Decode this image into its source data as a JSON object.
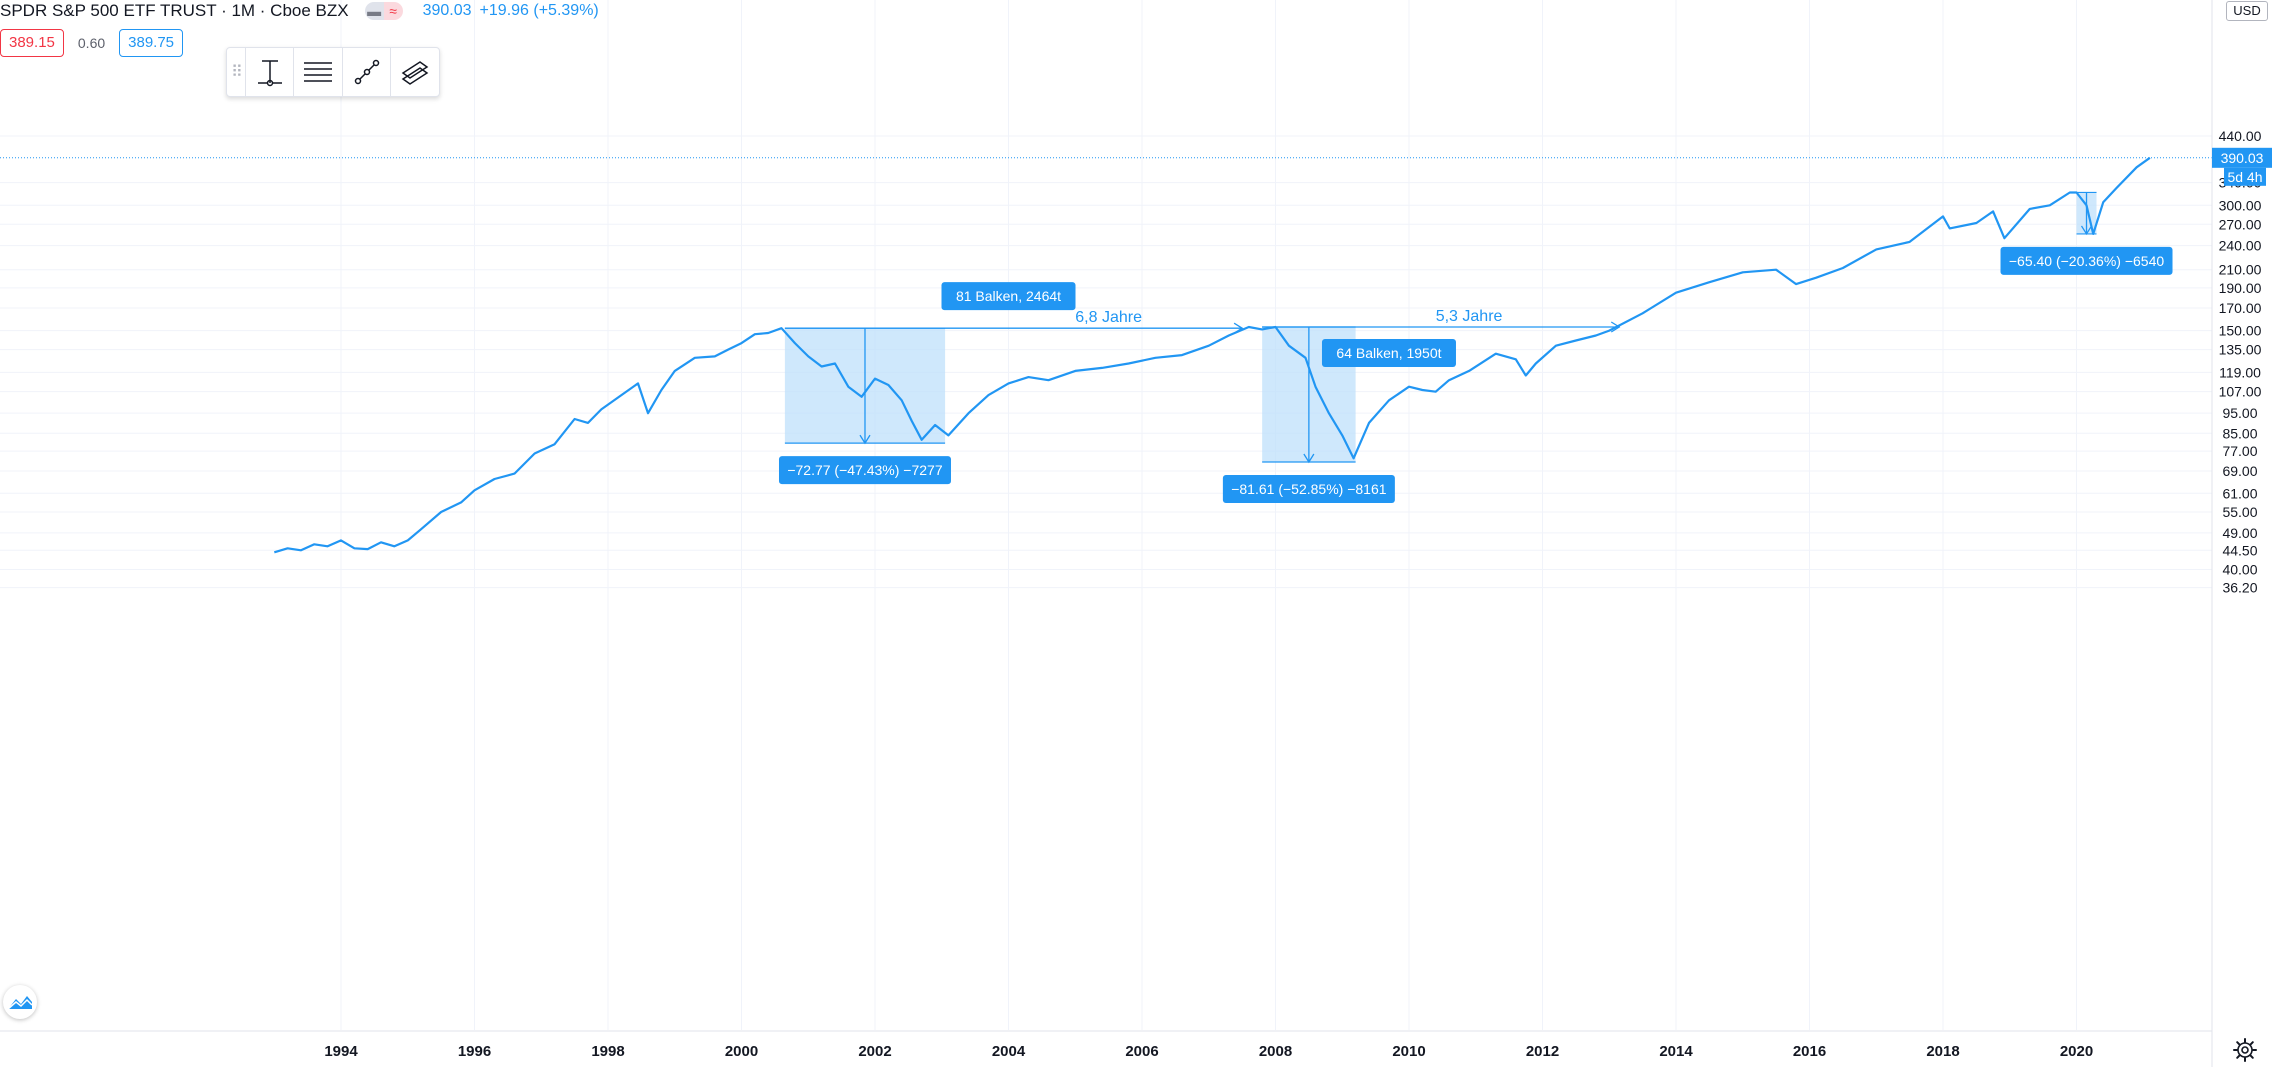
{
  "header": {
    "title": "SPDR S&P 500 ETF TRUST · 1M · Cboe BZX",
    "pill_left_icon": "minus-icon",
    "pill_right_icon": "approx-icon",
    "price": "390.03",
    "change": "+19.96 (+5.39%)"
  },
  "quote": {
    "sell": "389.15",
    "spread": "0.60",
    "buy": "389.75"
  },
  "toolbar": {
    "icons": [
      "drag-handle-icon",
      "price-range-icon",
      "fib-levels-icon",
      "trend-line-icon",
      "parallel-channel-icon"
    ]
  },
  "currency": "USD",
  "price_axis": {
    "last_price_label": "390.03",
    "countdown_label": "5d 4h"
  },
  "colors": {
    "line": "#2196f3",
    "range_fill": "#bbdefb",
    "label_bg": "#2196f3",
    "grid": "#f0f3fa",
    "text": "#131722"
  },
  "chart_data": {
    "type": "line",
    "scale": "log",
    "grid": true,
    "x_ticks": [
      "1994",
      "1996",
      "1998",
      "2000",
      "2002",
      "2004",
      "2006",
      "2008",
      "2010",
      "2012",
      "2014",
      "2016",
      "2018",
      "2020"
    ],
    "y_ticks": [
      "36.20",
      "40.00",
      "44.50",
      "49.00",
      "55.00",
      "61.00",
      "69.00",
      "77.00",
      "85.00",
      "95.00",
      "107.00",
      "119.00",
      "135.00",
      "150.00",
      "170.00",
      "190.00",
      "210.00",
      "240.00",
      "270.00",
      "300.00",
      "340.00",
      "390.03",
      "440.00"
    ],
    "series": [
      {
        "x": [
          1993.0,
          1993.2,
          1993.4,
          1993.6,
          1993.8,
          1994.0,
          1994.2,
          1994.4,
          1994.6,
          1994.8,
          1995.0,
          1995.2,
          1995.5,
          1995.8,
          1996.0,
          1996.3,
          1996.6,
          1996.9,
          1997.2,
          1997.5,
          1997.7,
          1997.9,
          1998.2,
          1998.45,
          1998.6,
          1998.8,
          1999.0,
          1999.3,
          1999.6,
          1999.8,
          2000.0,
          2000.2,
          2000.4,
          2000.6,
          2000.8,
          2001.0,
          2001.2,
          2001.4,
          2001.6,
          2001.8,
          2002.0,
          2002.2,
          2002.4,
          2002.55,
          2002.7,
          2002.9,
          2003.1,
          2003.4,
          2003.7,
          2004.0,
          2004.3,
          2004.6,
          2005.0,
          2005.4,
          2005.8,
          2006.2,
          2006.6,
          2007.0,
          2007.3,
          2007.6,
          2007.8,
          2008.0,
          2008.2,
          2008.45,
          2008.6,
          2008.8,
          2009.0,
          2009.17,
          2009.4,
          2009.7,
          2010.0,
          2010.2,
          2010.4,
          2010.6,
          2010.9,
          2011.3,
          2011.6,
          2011.75,
          2011.9,
          2012.2,
          2012.5,
          2012.8,
          2013.0,
          2013.5,
          2014.0,
          2014.5,
          2015.0,
          2015.5,
          2015.8,
          2016.1,
          2016.5,
          2017.0,
          2017.5,
          2018.0,
          2018.1,
          2018.5,
          2018.75,
          2018.92,
          2019.3,
          2019.6,
          2019.9,
          2020.0,
          2020.15,
          2020.25,
          2020.4,
          2020.6,
          2020.9,
          2021.1
        ],
        "y": [
          44,
          45,
          44.5,
          46,
          45.5,
          47,
          45,
          44.8,
          46.5,
          45.5,
          47,
          50,
          55,
          58,
          62,
          66,
          68,
          76,
          80,
          92,
          90,
          97,
          105,
          112,
          95,
          108,
          120,
          129,
          130,
          135,
          140,
          147,
          148,
          152,
          140,
          130,
          123,
          125,
          110,
          104,
          115,
          111,
          102,
          91,
          82,
          89,
          84,
          95,
          105,
          112,
          116,
          114,
          120,
          122,
          125,
          129,
          131,
          138,
          146,
          153,
          151,
          153,
          138,
          129,
          110,
          95,
          84,
          74,
          90,
          102,
          110,
          108,
          107,
          114,
          120,
          132,
          128,
          117,
          125,
          138,
          142,
          146,
          150,
          165,
          185,
          196,
          207,
          210,
          194,
          201,
          212,
          235,
          245,
          282,
          264,
          272,
          290,
          250,
          294,
          300,
          322,
          322,
          300,
          256,
          305,
          330,
          370,
          390.03
        ]
      }
    ]
  },
  "measurements": {
    "drawdown_1": "−72.77 (−47.43%) −7277",
    "recovery_1_bars": "81 Balken, 2464t",
    "recovery_1_years": "6,8 Jahre",
    "drawdown_2": "−81.61 (−52.85%) −8161",
    "recovery_2_bars": "64 Balken, 1950t",
    "recovery_2_years": "5,3 Jahre",
    "drawdown_3": "−65.40 (−20.36%) −6540"
  }
}
